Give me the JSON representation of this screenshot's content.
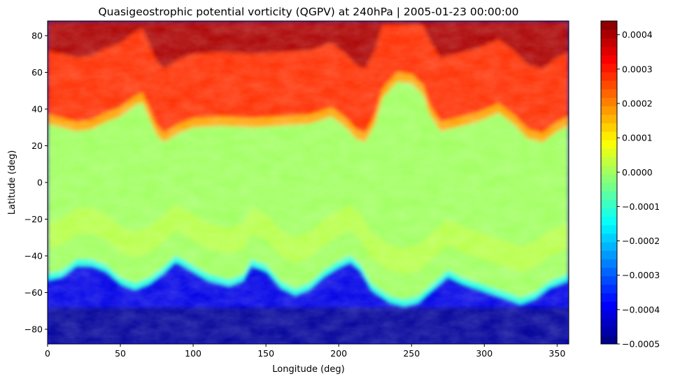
{
  "chart_data": {
    "type": "heatmap",
    "title": "Quasigeostrophic potential vorticity (QGPV) at 240hPa | 2005-01-23 00:00:00",
    "xlabel": "Longitude (deg)",
    "ylabel": "Latitude (deg)",
    "xlim": [
      0,
      358
    ],
    "ylim": [
      -88,
      88
    ],
    "x_ticks": [
      0,
      50,
      100,
      150,
      200,
      250,
      300,
      350
    ],
    "y_ticks": [
      -80,
      -60,
      -40,
      -20,
      0,
      20,
      40,
      60,
      80
    ],
    "colormap": "jet",
    "colorbar": {
      "range": [
        -0.0005,
        0.00044
      ],
      "ticks": [
        {
          "value": -0.0005,
          "label": "−0.0005"
        },
        {
          "value": -0.0004,
          "label": "−0.0004"
        },
        {
          "value": -0.0003,
          "label": "−0.0003"
        },
        {
          "value": -0.0002,
          "label": "−0.0002"
        },
        {
          "value": -0.0001,
          "label": "−0.0001"
        },
        {
          "value": 0.0,
          "label": "0.0000"
        },
        {
          "value": 0.0001,
          "label": "0.0001"
        },
        {
          "value": 0.0002,
          "label": "0.0002"
        },
        {
          "value": 0.0003,
          "label": "0.0003"
        },
        {
          "value": 0.0004,
          "label": "0.0004"
        }
      ]
    },
    "field": {
      "description_levels": {
        "polar_north": 0.0004,
        "subtropical_band": 0.0,
        "polar_south": -0.00045
      },
      "north_boundary_lat_by_lon": [
        [
          0,
          32
        ],
        [
          10,
          30
        ],
        [
          20,
          28
        ],
        [
          30,
          29
        ],
        [
          40,
          33
        ],
        [
          50,
          36
        ],
        [
          60,
          42
        ],
        [
          65,
          44
        ],
        [
          70,
          35
        ],
        [
          75,
          26
        ],
        [
          80,
          22
        ],
        [
          90,
          27
        ],
        [
          100,
          30
        ],
        [
          120,
          31
        ],
        [
          140,
          30
        ],
        [
          160,
          31
        ],
        [
          180,
          32
        ],
        [
          195,
          36
        ],
        [
          205,
          30
        ],
        [
          212,
          24
        ],
        [
          218,
          22
        ],
        [
          225,
          32
        ],
        [
          230,
          46
        ],
        [
          240,
          55
        ],
        [
          250,
          54
        ],
        [
          258,
          48
        ],
        [
          262,
          38
        ],
        [
          270,
          28
        ],
        [
          280,
          30
        ],
        [
          295,
          33
        ],
        [
          310,
          38
        ],
        [
          320,
          32
        ],
        [
          330,
          24
        ],
        [
          340,
          22
        ],
        [
          350,
          28
        ],
        [
          358,
          31
        ]
      ],
      "south_boundary_lat_by_lon": [
        [
          0,
          -50
        ],
        [
          10,
          -48
        ],
        [
          20,
          -42
        ],
        [
          30,
          -42
        ],
        [
          40,
          -45
        ],
        [
          50,
          -52
        ],
        [
          60,
          -55
        ],
        [
          70,
          -52
        ],
        [
          80,
          -46
        ],
        [
          88,
          -40
        ],
        [
          95,
          -43
        ],
        [
          110,
          -50
        ],
        [
          125,
          -53
        ],
        [
          135,
          -50
        ],
        [
          140,
          -42
        ],
        [
          150,
          -45
        ],
        [
          160,
          -54
        ],
        [
          170,
          -58
        ],
        [
          180,
          -55
        ],
        [
          190,
          -48
        ],
        [
          200,
          -43
        ],
        [
          208,
          -40
        ],
        [
          215,
          -45
        ],
        [
          222,
          -55
        ],
        [
          235,
          -62
        ],
        [
          245,
          -64
        ],
        [
          255,
          -62
        ],
        [
          265,
          -55
        ],
        [
          275,
          -48
        ],
        [
          285,
          -52
        ],
        [
          300,
          -56
        ],
        [
          315,
          -60
        ],
        [
          325,
          -63
        ],
        [
          335,
          -60
        ],
        [
          345,
          -54
        ],
        [
          358,
          -50
        ]
      ]
    }
  }
}
